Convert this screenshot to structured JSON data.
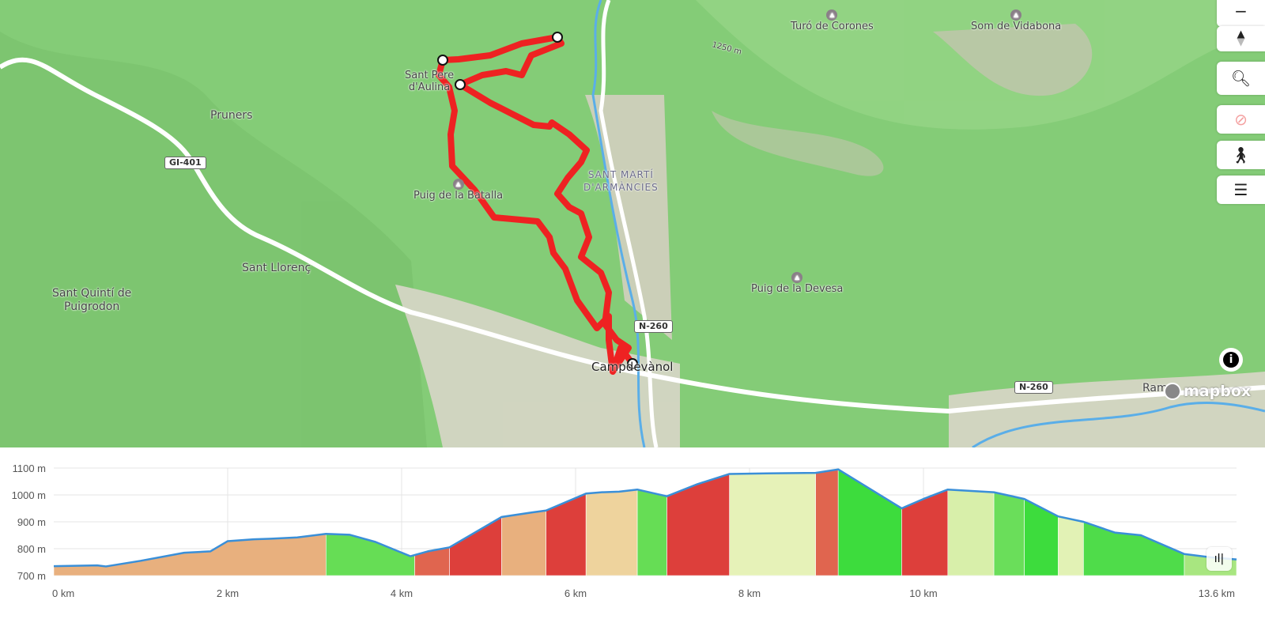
{
  "map": {
    "labels": {
      "turo_corones": "Turó de Corones",
      "som_vidabona": "Som de Vidabona",
      "contour_1250": "1250 m",
      "sant_pere": "Sant Pere",
      "aulina": "d'Aulina",
      "pruners": "Pruners",
      "gi401": "GI-401",
      "puig_batalla": "Puig de la Batalla",
      "sant_marti_1": "SANT MARTÍ",
      "sant_marti_2": "D'ARMÀNCIES",
      "sant_llorenc": "Sant Llorenç",
      "sant_quinti_1": "Sant Quintí de",
      "sant_quinti_2": "Puigrodon",
      "n260": "N-260",
      "campdevanol": "Campdevànol",
      "puig_devesa": "Puig de la Devesa",
      "rama": "Rama",
      "mapbox": "mapbox"
    },
    "route_color": "#ee2222",
    "controls": [
      "zoom-out-icon",
      "compass-icon",
      "search-icon",
      "location-disabled-icon",
      "accessibility-icon",
      "layers-icon"
    ],
    "info_icon": "info-icon"
  },
  "chart_data": {
    "type": "area",
    "xlabel": "",
    "ylabel": "",
    "xlim": [
      0,
      13.6
    ],
    "ylim": [
      700,
      1100
    ],
    "x_ticks": [
      "0 km",
      "2 km",
      "4 km",
      "6 km",
      "8 km",
      "10 km",
      "13.6 km"
    ],
    "x_tick_values": [
      0,
      2,
      4,
      6,
      8,
      10,
      13.6
    ],
    "y_ticks": [
      "1100 m",
      "1000 m",
      "900 m",
      "800 m",
      "700 m"
    ],
    "y_tick_values": [
      1100,
      1000,
      900,
      800,
      700
    ],
    "grid": true,
    "line_color": "#3a8fd8",
    "profile": {
      "km": [
        0,
        0.5,
        0.6,
        1,
        1.5,
        1.8,
        2,
        2.3,
        2.5,
        2.8,
        3.13,
        3.4,
        3.7,
        4.1,
        4.3,
        4.55,
        5.15,
        5.5,
        5.66,
        6.12,
        6.3,
        6.5,
        6.71,
        7.05,
        7.4,
        7.77,
        8.2,
        8.76,
        9.02,
        9.75,
        10.0,
        10.28,
        10.81,
        11.16,
        11.55,
        11.84,
        12.2,
        12.5,
        13.0,
        13.3,
        13.6
      ],
      "elevation_m": [
        735,
        738,
        734,
        755,
        785,
        790,
        828,
        835,
        837,
        842,
        855,
        852,
        825,
        772,
        790,
        805,
        918,
        935,
        942,
        1005,
        1010,
        1012,
        1020,
        995,
        1040,
        1078,
        1080,
        1082,
        1095,
        950,
        985,
        1020,
        1010,
        985,
        920,
        900,
        860,
        850,
        780,
        768,
        760
      ]
    },
    "segments": [
      {
        "from": 0,
        "to": 3.13,
        "color": "#e8b07e"
      },
      {
        "from": 3.13,
        "to": 4.15,
        "color": "#66dd55"
      },
      {
        "from": 4.15,
        "to": 4.55,
        "color": "#e0654f"
      },
      {
        "from": 4.55,
        "to": 5.15,
        "color": "#dd3f3b"
      },
      {
        "from": 5.15,
        "to": 5.66,
        "color": "#e8b07e"
      },
      {
        "from": 5.66,
        "to": 6.12,
        "color": "#dd3f3b"
      },
      {
        "from": 6.12,
        "to": 6.71,
        "color": "#eed39d"
      },
      {
        "from": 6.71,
        "to": 7.05,
        "color": "#66dd55"
      },
      {
        "from": 7.05,
        "to": 7.77,
        "color": "#dd3f3b"
      },
      {
        "from": 7.77,
        "to": 8.76,
        "color": "#e6f2b8"
      },
      {
        "from": 8.76,
        "to": 9.02,
        "color": "#e0654f"
      },
      {
        "from": 9.02,
        "to": 9.75,
        "color": "#3ddc3d"
      },
      {
        "from": 9.75,
        "to": 10.28,
        "color": "#dd3f3b"
      },
      {
        "from": 10.28,
        "to": 10.81,
        "color": "#d8efaa"
      },
      {
        "from": 10.81,
        "to": 11.16,
        "color": "#6ade5a"
      },
      {
        "from": 11.16,
        "to": 11.55,
        "color": "#3ddc3d"
      },
      {
        "from": 11.55,
        "to": 11.84,
        "color": "#e2f2b5"
      },
      {
        "from": 11.84,
        "to": 13.0,
        "color": "#4fdc4a"
      },
      {
        "from": 13.0,
        "to": 13.6,
        "color": "#a8e680"
      }
    ]
  },
  "chart_controls": {
    "icon": "bar-chart-icon"
  }
}
